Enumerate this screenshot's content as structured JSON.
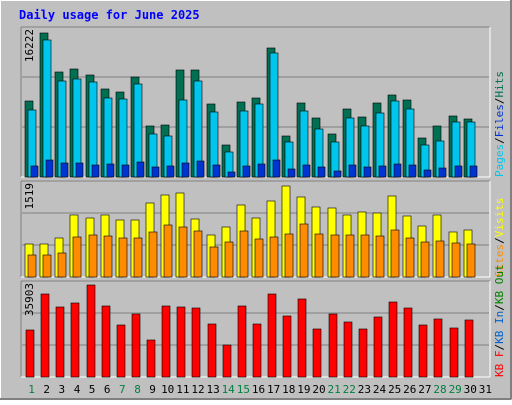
{
  "title": "Daily usage for June 2025",
  "chart_data": [
    {
      "type": "bar",
      "panel": "hits-files-pages",
      "ymax_label": "16222",
      "ylim": [
        0,
        16222
      ],
      "categories": [
        "1",
        "2",
        "3",
        "4",
        "5",
        "6",
        "7",
        "8",
        "9",
        "10",
        "11",
        "12",
        "13",
        "14",
        "15",
        "16",
        "17",
        "18",
        "19",
        "20",
        "21",
        "22",
        "23",
        "24",
        "25",
        "26",
        "27",
        "28",
        "29",
        "30",
        "31"
      ],
      "series": [
        {
          "name": "Hits",
          "color": "#006f52",
          "values": [
            8400,
            16000,
            11700,
            12000,
            11300,
            9800,
            9400,
            11100,
            5700,
            5800,
            11900,
            11900,
            8100,
            3500,
            8300,
            8800,
            14300,
            4500,
            8200,
            6600,
            4800,
            7500,
            6700,
            8200,
            9100,
            8500,
            4300,
            5700,
            6800,
            6400,
            0
          ]
        },
        {
          "name": "Files",
          "color": "#00c6ee",
          "values": [
            7400,
            15200,
            10700,
            10900,
            10500,
            8800,
            8700,
            10300,
            4800,
            4600,
            8600,
            10700,
            7200,
            2800,
            7300,
            8100,
            13800,
            3900,
            7300,
            5300,
            3900,
            6600,
            5700,
            7100,
            8400,
            7500,
            3500,
            4000,
            6100,
            6100,
            0
          ]
        },
        {
          "name": "Pages",
          "color": "#0034d2",
          "values": [
            1200,
            1900,
            1500,
            1600,
            1300,
            1400,
            1300,
            1700,
            1100,
            1200,
            1500,
            1800,
            1300,
            500,
            1200,
            1400,
            1900,
            900,
            1300,
            1100,
            700,
            1300,
            1100,
            1200,
            1400,
            1300,
            800,
            1000,
            1200,
            1200,
            0
          ]
        }
      ],
      "legend": [
        "Pages",
        "Files",
        "Hits"
      ]
    },
    {
      "type": "bar",
      "panel": "visits-sites",
      "ymax_label": "1519",
      "ylim": [
        0,
        1519
      ],
      "categories": [
        "1",
        "2",
        "3",
        "4",
        "5",
        "6",
        "7",
        "8",
        "9",
        "10",
        "11",
        "12",
        "13",
        "14",
        "15",
        "16",
        "17",
        "18",
        "19",
        "20",
        "21",
        "22",
        "23",
        "24",
        "25",
        "26",
        "27",
        "28",
        "29",
        "30",
        "31"
      ],
      "series": [
        {
          "name": "Visits",
          "color": "#ffff00",
          "values": [
            550,
            550,
            640,
            1020,
            970,
            1030,
            940,
            940,
            1230,
            1360,
            1390,
            960,
            700,
            820,
            1190,
            980,
            1250,
            1500,
            1320,
            1160,
            1140,
            1020,
            1080,
            1060,
            1330,
            1000,
            850,
            1030,
            750,
            770,
            0
          ]
        },
        {
          "name": "Sites",
          "color": "#ff8c00",
          "values": [
            370,
            360,
            400,
            660,
            690,
            680,
            640,
            640,
            750,
            860,
            830,
            760,
            500,
            580,
            760,
            620,
            660,
            710,
            870,
            710,
            700,
            690,
            690,
            670,
            780,
            650,
            570,
            600,
            560,
            540,
            0
          ]
        }
      ],
      "legend": [
        "Sites",
        "Visits"
      ]
    },
    {
      "type": "bar",
      "panel": "kbytes",
      "ymax_label": "35903",
      "ylim": [
        0,
        35903
      ],
      "categories": [
        "1",
        "2",
        "3",
        "4",
        "5",
        "6",
        "7",
        "8",
        "9",
        "10",
        "11",
        "12",
        "13",
        "14",
        "15",
        "16",
        "17",
        "18",
        "19",
        "20",
        "21",
        "22",
        "23",
        "24",
        "25",
        "26",
        "27",
        "28",
        "29",
        "30",
        "31"
      ],
      "series": [
        {
          "name": "KB F",
          "color": "#ff0000",
          "values": [
            18400,
            32400,
            27300,
            28900,
            35900,
            27800,
            20400,
            24500,
            14500,
            27800,
            27300,
            27000,
            20800,
            12500,
            27700,
            20500,
            32400,
            23800,
            30300,
            18800,
            24600,
            21300,
            18800,
            23600,
            29100,
            27100,
            20300,
            22800,
            19200,
            22200,
            0
          ]
        }
      ],
      "legend": [
        "KB F",
        "KB In",
        "KB Out"
      ]
    }
  ],
  "colors": {
    "background": "#c0c0c0",
    "plot_bg": "#c0c0c0",
    "title": "#0000ff",
    "weekend_tick": "#008040",
    "weekday_tick": "#000000",
    "scale_text": "#000000",
    "grid": "#808080"
  },
  "weekend_days": [
    "1",
    "7",
    "8",
    "14",
    "15",
    "21",
    "22",
    "28",
    "29"
  ]
}
